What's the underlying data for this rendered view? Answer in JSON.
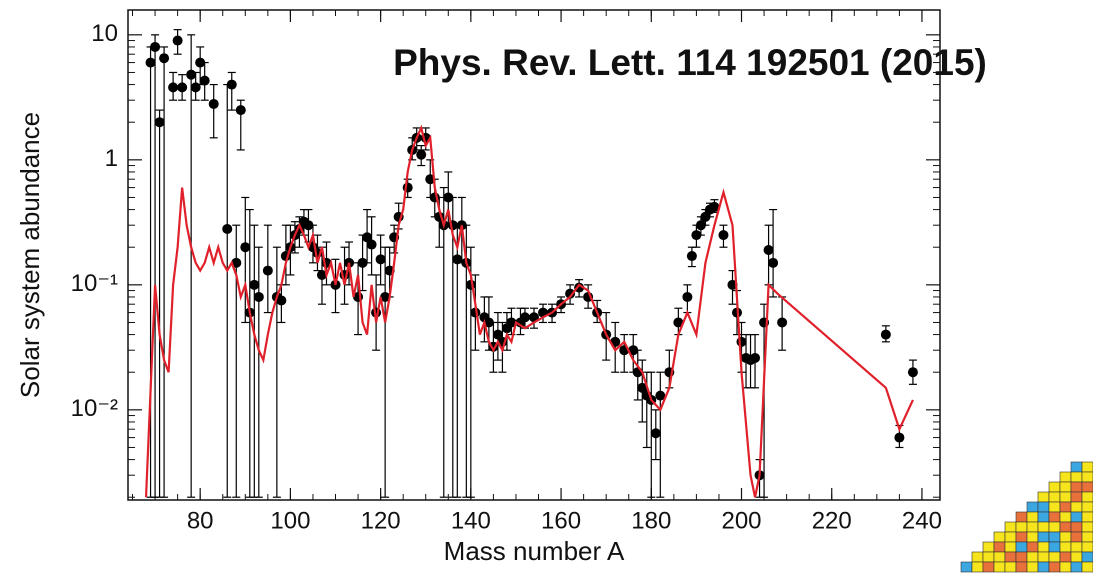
{
  "chart_data": {
    "type": "scatter",
    "annotation": "Phys. Rev. Lett. 114 192501 (2015)",
    "x_label": "Mass number A",
    "y_label": "Solar system abundance",
    "xlim": [
      64,
      244
    ],
    "xticks": [
      80,
      100,
      120,
      140,
      160,
      180,
      200,
      220,
      240
    ],
    "ylim": [
      0.0019,
      15.8
    ],
    "log_y": true,
    "yticks": [
      {
        "value": 0.01,
        "label": "10⁻²"
      },
      {
        "value": 0.1,
        "label": "10⁻¹"
      },
      1,
      10
    ],
    "series": [
      {
        "type": "scatter",
        "color": "#000000",
        "x": [
          69,
          70,
          71,
          72,
          74,
          75,
          76,
          78,
          79,
          80,
          81,
          83,
          86,
          87,
          88,
          89,
          90,
          91,
          92,
          93,
          95,
          97,
          98,
          99,
          100,
          101,
          102,
          103,
          104,
          105,
          106,
          107,
          108,
          110,
          112,
          113,
          115,
          116,
          117,
          118,
          119,
          120,
          121,
          122,
          123,
          124,
          126,
          127,
          128,
          129,
          130,
          131,
          132,
          133,
          134,
          135,
          136,
          137,
          138,
          139,
          140,
          141,
          143,
          144,
          145,
          146,
          147,
          148,
          149,
          151,
          152,
          154,
          156,
          158,
          160,
          162,
          164,
          166,
          168,
          170,
          172,
          174,
          176,
          177,
          178,
          179,
          180,
          181,
          182,
          184,
          186,
          188,
          189,
          190,
          191,
          192,
          193,
          194,
          196,
          198,
          199,
          200,
          201,
          202,
          203,
          204,
          205,
          206,
          207,
          209,
          232,
          235,
          238
        ],
        "values": [
          6,
          8,
          2,
          6.5,
          3.8,
          9,
          3.8,
          4.8,
          3.8,
          6,
          4.3,
          2.8,
          0.28,
          4,
          0.15,
          2.5,
          0.2,
          0.06,
          0.1,
          0.08,
          0.13,
          0.08,
          0.075,
          0.17,
          0.2,
          0.25,
          0.28,
          0.32,
          0.3,
          0.2,
          0.18,
          0.12,
          0.15,
          0.1,
          0.12,
          0.15,
          0.08,
          0.15,
          0.24,
          0.21,
          0.06,
          0.16,
          0.08,
          0.13,
          0.24,
          0.35,
          0.6,
          1.2,
          1.5,
          1.1,
          1.5,
          0.7,
          0.5,
          0.35,
          0.3,
          0.5,
          0.3,
          0.16,
          0.3,
          0.15,
          0.1,
          0.06,
          0.055,
          0.05,
          0.032,
          0.04,
          0.035,
          0.045,
          0.05,
          0.05,
          0.055,
          0.055,
          0.06,
          0.06,
          0.07,
          0.085,
          0.095,
          0.08,
          0.06,
          0.04,
          0.035,
          0.03,
          0.03,
          0.02,
          0.015,
          0.013,
          0.012,
          0.0065,
          0.013,
          0.02,
          0.05,
          0.08,
          0.17,
          0.25,
          0.3,
          0.35,
          0.4,
          0.42,
          0.25,
          0.1,
          0.06,
          0.035,
          0.026,
          0.025,
          0.026,
          0.003,
          0.05,
          0.19,
          0.15,
          0.05,
          0.04,
          0.006,
          0.02
        ],
        "lower": [
          0.002,
          0.002,
          0.002,
          0.002,
          3,
          7,
          3,
          0.002,
          3,
          4,
          3,
          1.5,
          0.002,
          2.5,
          0.002,
          1.2,
          0.05,
          0.002,
          0.002,
          0.002,
          0.06,
          0.002,
          0.05,
          0.1,
          0.12,
          0.18,
          0.2,
          0.25,
          0.22,
          0.15,
          0.13,
          0.07,
          0.1,
          0.06,
          0.07,
          0.1,
          0.04,
          0.09,
          0.15,
          0.12,
          0.03,
          0.1,
          0.002,
          0.08,
          0.18,
          0.28,
          0.5,
          1,
          1.2,
          0.9,
          1.2,
          0.5,
          0.35,
          0.2,
          0.002,
          0.3,
          0.002,
          0.002,
          0.15,
          0.002,
          0.002,
          0.03,
          0.035,
          0.03,
          0.02,
          0.025,
          0.02,
          0.03,
          0.04,
          0.04,
          0.045,
          0.045,
          0.05,
          0.05,
          0.06,
          0.07,
          0.08,
          0.065,
          0.05,
          0.025,
          0.02,
          0.02,
          0.02,
          0.012,
          0.008,
          0.005,
          0.002,
          0.004,
          0.002,
          0.015,
          0.04,
          0.06,
          0.14,
          0.2,
          0.25,
          0.3,
          0.35,
          0.38,
          0.2,
          0.07,
          0.04,
          0.02,
          0.015,
          0.015,
          0.015,
          0.002,
          0.002,
          0.1,
          0.08,
          0.03,
          0.035,
          0.005,
          0.016
        ],
        "upper": [
          8,
          10,
          2.5,
          8,
          5,
          11,
          4.8,
          10,
          5,
          8,
          6,
          4,
          4,
          5,
          0.3,
          3,
          0.5,
          0.4,
          0.3,
          0.2,
          0.3,
          0.2,
          0.1,
          0.3,
          0.3,
          0.32,
          0.35,
          0.4,
          0.4,
          0.3,
          0.25,
          0.2,
          0.22,
          0.16,
          0.2,
          0.22,
          0.15,
          0.25,
          0.4,
          0.35,
          0.12,
          0.25,
          0.2,
          0.2,
          0.3,
          0.45,
          0.7,
          1.5,
          1.8,
          1.3,
          1.8,
          1,
          0.7,
          0.5,
          0.6,
          0.8,
          0.5,
          0.3,
          0.5,
          0.3,
          0.2,
          0.12,
          0.08,
          0.08,
          0.05,
          0.06,
          0.05,
          0.06,
          0.065,
          0.065,
          0.065,
          0.065,
          0.07,
          0.07,
          0.08,
          0.1,
          0.11,
          0.1,
          0.075,
          0.06,
          0.05,
          0.04,
          0.04,
          0.03,
          0.025,
          0.02,
          0.02,
          0.01,
          0.02,
          0.03,
          0.065,
          0.1,
          0.2,
          0.3,
          0.35,
          0.4,
          0.45,
          0.48,
          0.3,
          0.13,
          0.09,
          0.05,
          0.04,
          0.04,
          0.04,
          0.004,
          0.07,
          0.3,
          0.4,
          0.08,
          0.047,
          0.0075,
          0.025
        ]
      },
      {
        "type": "line",
        "color": "#e0202a",
        "x": [
          68,
          70,
          71,
          72,
          73,
          74,
          75,
          76,
          77,
          78,
          79,
          80,
          81,
          82,
          83,
          84,
          85,
          86,
          87,
          88,
          89,
          90,
          91,
          92,
          93,
          94,
          95,
          96,
          97,
          98,
          99,
          100,
          101,
          102,
          103,
          104,
          105,
          106,
          107,
          108,
          109,
          110,
          111,
          112,
          113,
          114,
          115,
          116,
          117,
          118,
          119,
          120,
          121,
          122,
          123,
          124,
          125,
          126,
          127,
          128,
          129,
          130,
          131,
          132,
          133,
          134,
          135,
          136,
          137,
          138,
          139,
          140,
          141,
          142,
          143,
          144,
          145,
          146,
          147,
          148,
          149,
          150,
          152,
          154,
          156,
          158,
          160,
          162,
          164,
          166,
          168,
          170,
          172,
          174,
          176,
          178,
          180,
          182,
          184,
          186,
          188,
          190,
          192,
          194,
          196,
          198,
          200,
          202,
          203,
          204,
          206,
          208,
          232,
          235,
          238
        ],
        "values": [
          0.002,
          0.1,
          0.04,
          0.025,
          0.02,
          0.1,
          0.2,
          0.6,
          0.3,
          0.2,
          0.15,
          0.13,
          0.15,
          0.2,
          0.15,
          0.2,
          0.15,
          0.13,
          0.15,
          0.12,
          0.08,
          0.1,
          0.06,
          0.04,
          0.03,
          0.025,
          0.04,
          0.06,
          0.08,
          0.1,
          0.15,
          0.2,
          0.25,
          0.3,
          0.25,
          0.2,
          0.25,
          0.15,
          0.2,
          0.12,
          0.15,
          0.1,
          0.15,
          0.1,
          0.15,
          0.08,
          0.12,
          0.05,
          0.04,
          0.1,
          0.05,
          0.08,
          0.05,
          0.08,
          0.15,
          0.3,
          0.4,
          0.8,
          1.2,
          1.5,
          1.8,
          1.3,
          1.5,
          0.6,
          0.4,
          0.3,
          0.4,
          0.25,
          0.2,
          0.3,
          0.15,
          0.12,
          0.07,
          0.04,
          0.05,
          0.035,
          0.03,
          0.035,
          0.03,
          0.04,
          0.035,
          0.05,
          0.045,
          0.05,
          0.055,
          0.06,
          0.07,
          0.08,
          0.1,
          0.09,
          0.06,
          0.04,
          0.03,
          0.035,
          0.025,
          0.02,
          0.012,
          0.01,
          0.015,
          0.04,
          0.06,
          0.04,
          0.15,
          0.3,
          0.55,
          0.3,
          0.02,
          0.003,
          0.002,
          0.003,
          0.1,
          0.085,
          0.015,
          0.007,
          0.012
        ]
      }
    ]
  }
}
